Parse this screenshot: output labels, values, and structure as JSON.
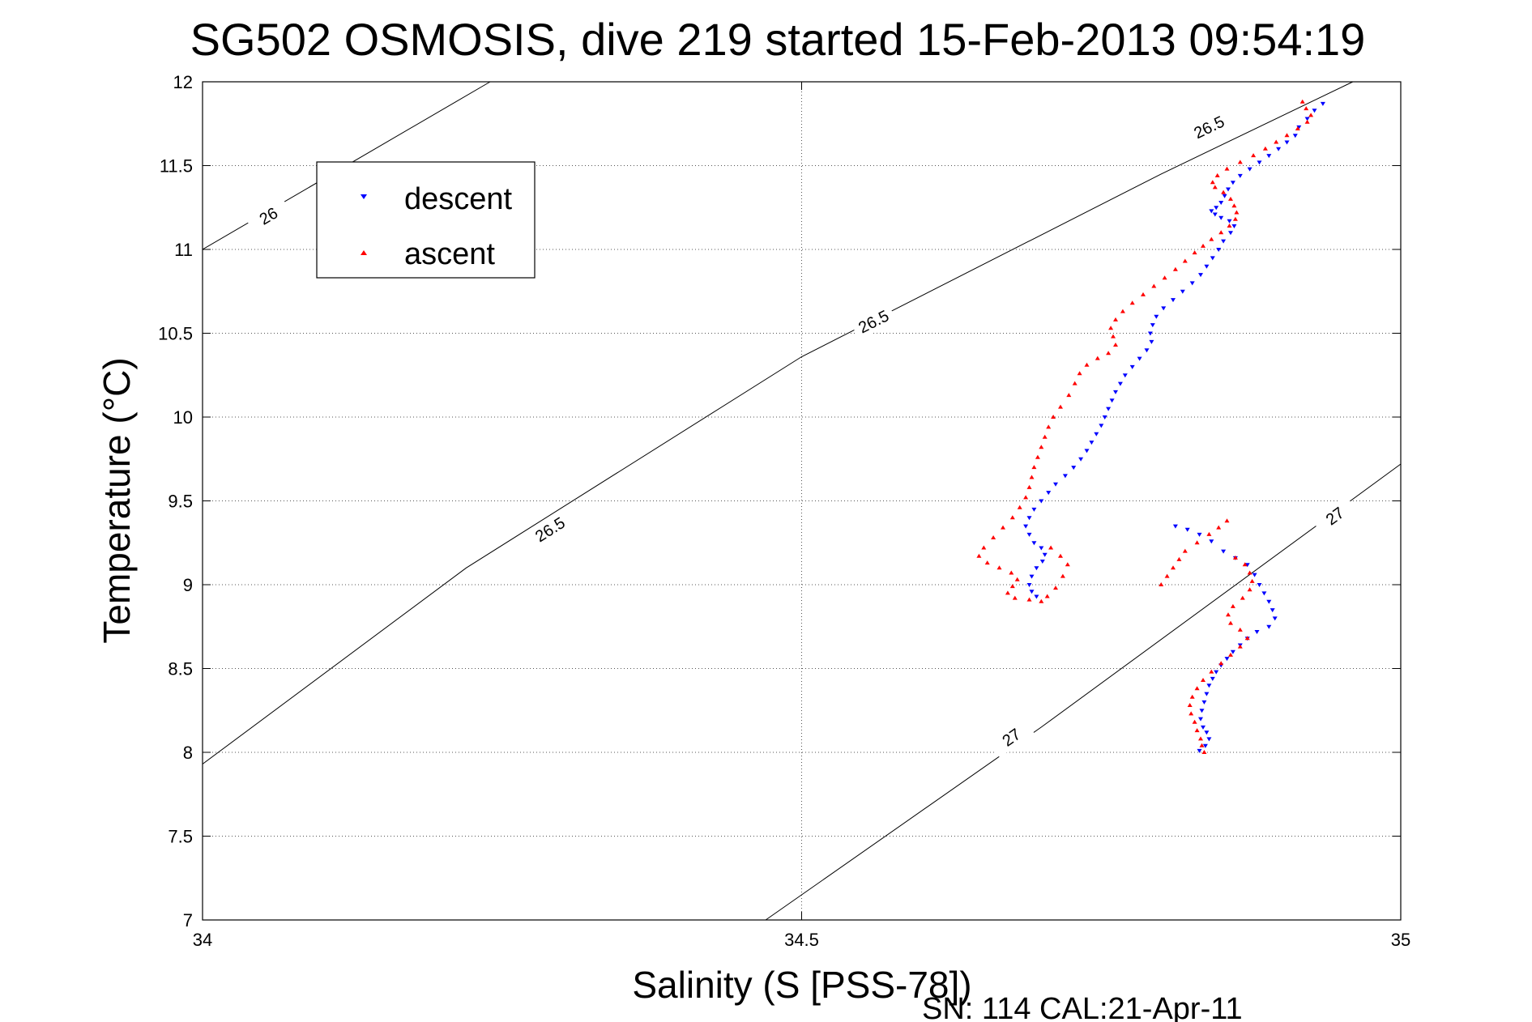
{
  "chart_data": {
    "type": "scatter",
    "title": "SG502 OSMOSIS, dive 219 started 15-Feb-2013 09:54:19",
    "xlabel": "Salinity (S [PSS-78])",
    "ylabel": "Temperature (°C)",
    "xlim": [
      34,
      35
    ],
    "ylim": [
      7,
      12
    ],
    "xticks": [
      34,
      34.5,
      35
    ],
    "xtick_labels": [
      "34",
      "34.5",
      "35"
    ],
    "yticks": [
      7,
      7.5,
      8,
      8.5,
      9,
      9.5,
      10,
      10.5,
      11,
      11.5,
      12
    ],
    "ytick_labels": [
      "7",
      "7.5",
      "8",
      "8.5",
      "9",
      "9.5",
      "10",
      "10.5",
      "11",
      "11.5",
      "12"
    ],
    "grid": true,
    "legend_position": "top-left",
    "footer": "SN: 114  CAL:21-Apr-11",
    "contours": [
      {
        "level": "26",
        "points": [
          [
            34.0,
            11.0
          ],
          [
            34.24,
            12.0
          ]
        ],
        "labels": [
          {
            "text": "26",
            "x": 34.055,
            "y": 11.2
          }
        ]
      },
      {
        "level": "26.5",
        "points": [
          [
            34.0,
            7.93
          ],
          [
            34.22,
            9.1
          ],
          [
            34.5,
            10.36
          ],
          [
            34.8,
            11.45
          ],
          [
            34.96,
            12.0
          ]
        ],
        "labels": [
          {
            "text": "26.5",
            "x": 34.29,
            "y": 9.33
          },
          {
            "text": "26.5",
            "x": 34.56,
            "y": 10.57
          },
          {
            "text": "26.5",
            "x": 34.84,
            "y": 11.73
          }
        ]
      },
      {
        "level": "27",
        "points": [
          [
            34.47,
            7.0
          ],
          [
            34.7,
            8.15
          ],
          [
            35.0,
            9.72
          ]
        ],
        "labels": [
          {
            "text": "27",
            "x": 34.675,
            "y": 8.09
          },
          {
            "text": "27",
            "x": 34.945,
            "y": 9.41
          }
        ]
      }
    ],
    "series": [
      {
        "name": "descent",
        "color": "#0000ff",
        "marker": "triangle-down",
        "points": [
          [
            34.935,
            11.87
          ],
          [
            34.928,
            11.83
          ],
          [
            34.922,
            11.78
          ],
          [
            34.915,
            11.73
          ],
          [
            34.912,
            11.68
          ],
          [
            34.905,
            11.64
          ],
          [
            34.898,
            11.6
          ],
          [
            34.89,
            11.56
          ],
          [
            34.882,
            11.52
          ],
          [
            34.874,
            11.48
          ],
          [
            34.866,
            11.44
          ],
          [
            34.86,
            11.4
          ],
          [
            34.856,
            11.36
          ],
          [
            34.853,
            11.32
          ],
          [
            34.85,
            11.28
          ],
          [
            34.846,
            11.25
          ],
          [
            34.842,
            11.23
          ],
          [
            34.845,
            11.21
          ],
          [
            34.85,
            11.19
          ],
          [
            34.857,
            11.17
          ],
          [
            34.861,
            11.14
          ],
          [
            34.858,
            11.1
          ],
          [
            34.852,
            11.05
          ],
          [
            34.848,
            11.0
          ],
          [
            34.843,
            10.95
          ],
          [
            34.838,
            10.9
          ],
          [
            34.833,
            10.85
          ],
          [
            34.826,
            10.8
          ],
          [
            34.818,
            10.75
          ],
          [
            34.81,
            10.7
          ],
          [
            34.802,
            10.65
          ],
          [
            34.796,
            10.6
          ],
          [
            34.793,
            10.55
          ],
          [
            34.791,
            10.5
          ],
          [
            34.792,
            10.45
          ],
          [
            34.788,
            10.4
          ],
          [
            34.782,
            10.35
          ],
          [
            34.776,
            10.3
          ],
          [
            34.77,
            10.25
          ],
          [
            34.766,
            10.2
          ],
          [
            34.762,
            10.15
          ],
          [
            34.759,
            10.1
          ],
          [
            34.756,
            10.05
          ],
          [
            34.753,
            10.0
          ],
          [
            34.75,
            9.95
          ],
          [
            34.746,
            9.9
          ],
          [
            34.742,
            9.85
          ],
          [
            34.738,
            9.8
          ],
          [
            34.733,
            9.75
          ],
          [
            34.727,
            9.7
          ],
          [
            34.72,
            9.65
          ],
          [
            34.712,
            9.6
          ],
          [
            34.706,
            9.55
          ],
          [
            34.7,
            9.5
          ],
          [
            34.694,
            9.45
          ],
          [
            34.69,
            9.4
          ],
          [
            34.687,
            9.35
          ],
          [
            34.69,
            9.3
          ],
          [
            34.694,
            9.25
          ],
          [
            34.7,
            9.22
          ],
          [
            34.703,
            9.18
          ],
          [
            34.701,
            9.14
          ],
          [
            34.696,
            9.1
          ],
          [
            34.692,
            9.05
          ],
          [
            34.69,
            9.0
          ],
          [
            34.692,
            8.96
          ],
          [
            34.696,
            8.93
          ],
          [
            34.812,
            9.35
          ],
          [
            34.822,
            9.33
          ],
          [
            34.832,
            9.3
          ],
          [
            34.842,
            9.26
          ],
          [
            34.852,
            9.2
          ],
          [
            34.862,
            9.16
          ],
          [
            34.872,
            9.12
          ],
          [
            34.878,
            9.06
          ],
          [
            34.882,
            9.0
          ],
          [
            34.886,
            8.95
          ],
          [
            34.89,
            8.9
          ],
          [
            34.893,
            8.85
          ],
          [
            34.895,
            8.8
          ],
          [
            34.89,
            8.75
          ],
          [
            34.88,
            8.72
          ],
          [
            34.872,
            8.68
          ],
          [
            34.866,
            8.64
          ],
          [
            34.86,
            8.6
          ],
          [
            34.855,
            8.56
          ],
          [
            34.85,
            8.52
          ],
          [
            34.846,
            8.48
          ],
          [
            34.843,
            8.44
          ],
          [
            34.84,
            8.4
          ],
          [
            34.838,
            8.35
          ],
          [
            34.836,
            8.3
          ],
          [
            34.834,
            8.25
          ],
          [
            34.833,
            8.2
          ],
          [
            34.835,
            8.15
          ],
          [
            34.838,
            8.12
          ],
          [
            34.84,
            8.08
          ],
          [
            34.837,
            8.04
          ],
          [
            34.832,
            8.01
          ]
        ]
      },
      {
        "name": "ascent",
        "color": "#ff0000",
        "marker": "triangle-up",
        "points": [
          [
            34.918,
            11.88
          ],
          [
            34.921,
            11.84
          ],
          [
            34.925,
            11.8
          ],
          [
            34.922,
            11.76
          ],
          [
            34.914,
            11.72
          ],
          [
            34.905,
            11.68
          ],
          [
            34.896,
            11.64
          ],
          [
            34.887,
            11.6
          ],
          [
            34.877,
            11.56
          ],
          [
            34.866,
            11.52
          ],
          [
            34.855,
            11.48
          ],
          [
            34.847,
            11.44
          ],
          [
            34.843,
            11.4
          ],
          [
            34.845,
            11.37
          ],
          [
            34.852,
            11.34
          ],
          [
            34.858,
            11.3
          ],
          [
            34.861,
            11.26
          ],
          [
            34.863,
            11.22
          ],
          [
            34.862,
            11.18
          ],
          [
            34.857,
            11.14
          ],
          [
            34.85,
            11.1
          ],
          [
            34.842,
            11.06
          ],
          [
            34.835,
            11.02
          ],
          [
            34.828,
            10.98
          ],
          [
            34.82,
            10.93
          ],
          [
            34.812,
            10.88
          ],
          [
            34.803,
            10.83
          ],
          [
            34.794,
            10.78
          ],
          [
            34.785,
            10.73
          ],
          [
            34.776,
            10.68
          ],
          [
            34.768,
            10.63
          ],
          [
            34.762,
            10.58
          ],
          [
            34.758,
            10.53
          ],
          [
            34.76,
            10.48
          ],
          [
            34.762,
            10.43
          ],
          [
            34.756,
            10.38
          ],
          [
            34.747,
            10.35
          ],
          [
            34.738,
            10.31
          ],
          [
            34.732,
            10.26
          ],
          [
            34.728,
            10.2
          ],
          [
            34.723,
            10.13
          ],
          [
            34.716,
            10.06
          ],
          [
            34.71,
            10.0
          ],
          [
            34.706,
            9.94
          ],
          [
            34.703,
            9.88
          ],
          [
            34.7,
            9.82
          ],
          [
            34.697,
            9.76
          ],
          [
            34.694,
            9.7
          ],
          [
            34.692,
            9.64
          ],
          [
            34.69,
            9.58
          ],
          [
            34.687,
            9.52
          ],
          [
            34.682,
            9.46
          ],
          [
            34.676,
            9.4
          ],
          [
            34.668,
            9.34
          ],
          [
            34.66,
            9.28
          ],
          [
            34.652,
            9.22
          ],
          [
            34.648,
            9.17
          ],
          [
            34.655,
            9.13
          ],
          [
            34.665,
            9.1
          ],
          [
            34.675,
            9.07
          ],
          [
            34.68,
            9.03
          ],
          [
            34.676,
            8.99
          ],
          [
            34.672,
            8.95
          ],
          [
            34.678,
            8.92
          ],
          [
            34.69,
            8.91
          ],
          [
            34.7,
            8.9
          ],
          [
            34.705,
            8.93
          ],
          [
            34.712,
            8.98
          ],
          [
            34.718,
            9.05
          ],
          [
            34.722,
            9.12
          ],
          [
            34.716,
            9.17
          ],
          [
            34.708,
            9.22
          ],
          [
            34.8,
            9.0
          ],
          [
            34.805,
            9.05
          ],
          [
            34.81,
            9.1
          ],
          [
            34.815,
            9.15
          ],
          [
            34.82,
            9.2
          ],
          [
            34.83,
            9.25
          ],
          [
            34.84,
            9.3
          ],
          [
            34.848,
            9.34
          ],
          [
            34.855,
            9.38
          ],
          [
            34.862,
            9.16
          ],
          [
            34.87,
            9.12
          ],
          [
            34.874,
            9.07
          ],
          [
            34.876,
            9.02
          ],
          [
            34.874,
            8.97
          ],
          [
            34.868,
            8.92
          ],
          [
            34.86,
            8.87
          ],
          [
            34.856,
            8.82
          ],
          [
            34.858,
            8.77
          ],
          [
            34.866,
            8.73
          ],
          [
            34.872,
            8.68
          ],
          [
            34.866,
            8.63
          ],
          [
            34.858,
            8.58
          ],
          [
            34.85,
            8.53
          ],
          [
            34.842,
            8.48
          ],
          [
            34.835,
            8.43
          ],
          [
            34.83,
            8.38
          ],
          [
            34.826,
            8.33
          ],
          [
            34.824,
            8.28
          ],
          [
            34.825,
            8.23
          ],
          [
            34.828,
            8.18
          ],
          [
            34.83,
            8.13
          ],
          [
            34.833,
            8.08
          ],
          [
            34.834,
            8.04
          ],
          [
            34.836,
            8.0
          ]
        ]
      }
    ]
  }
}
